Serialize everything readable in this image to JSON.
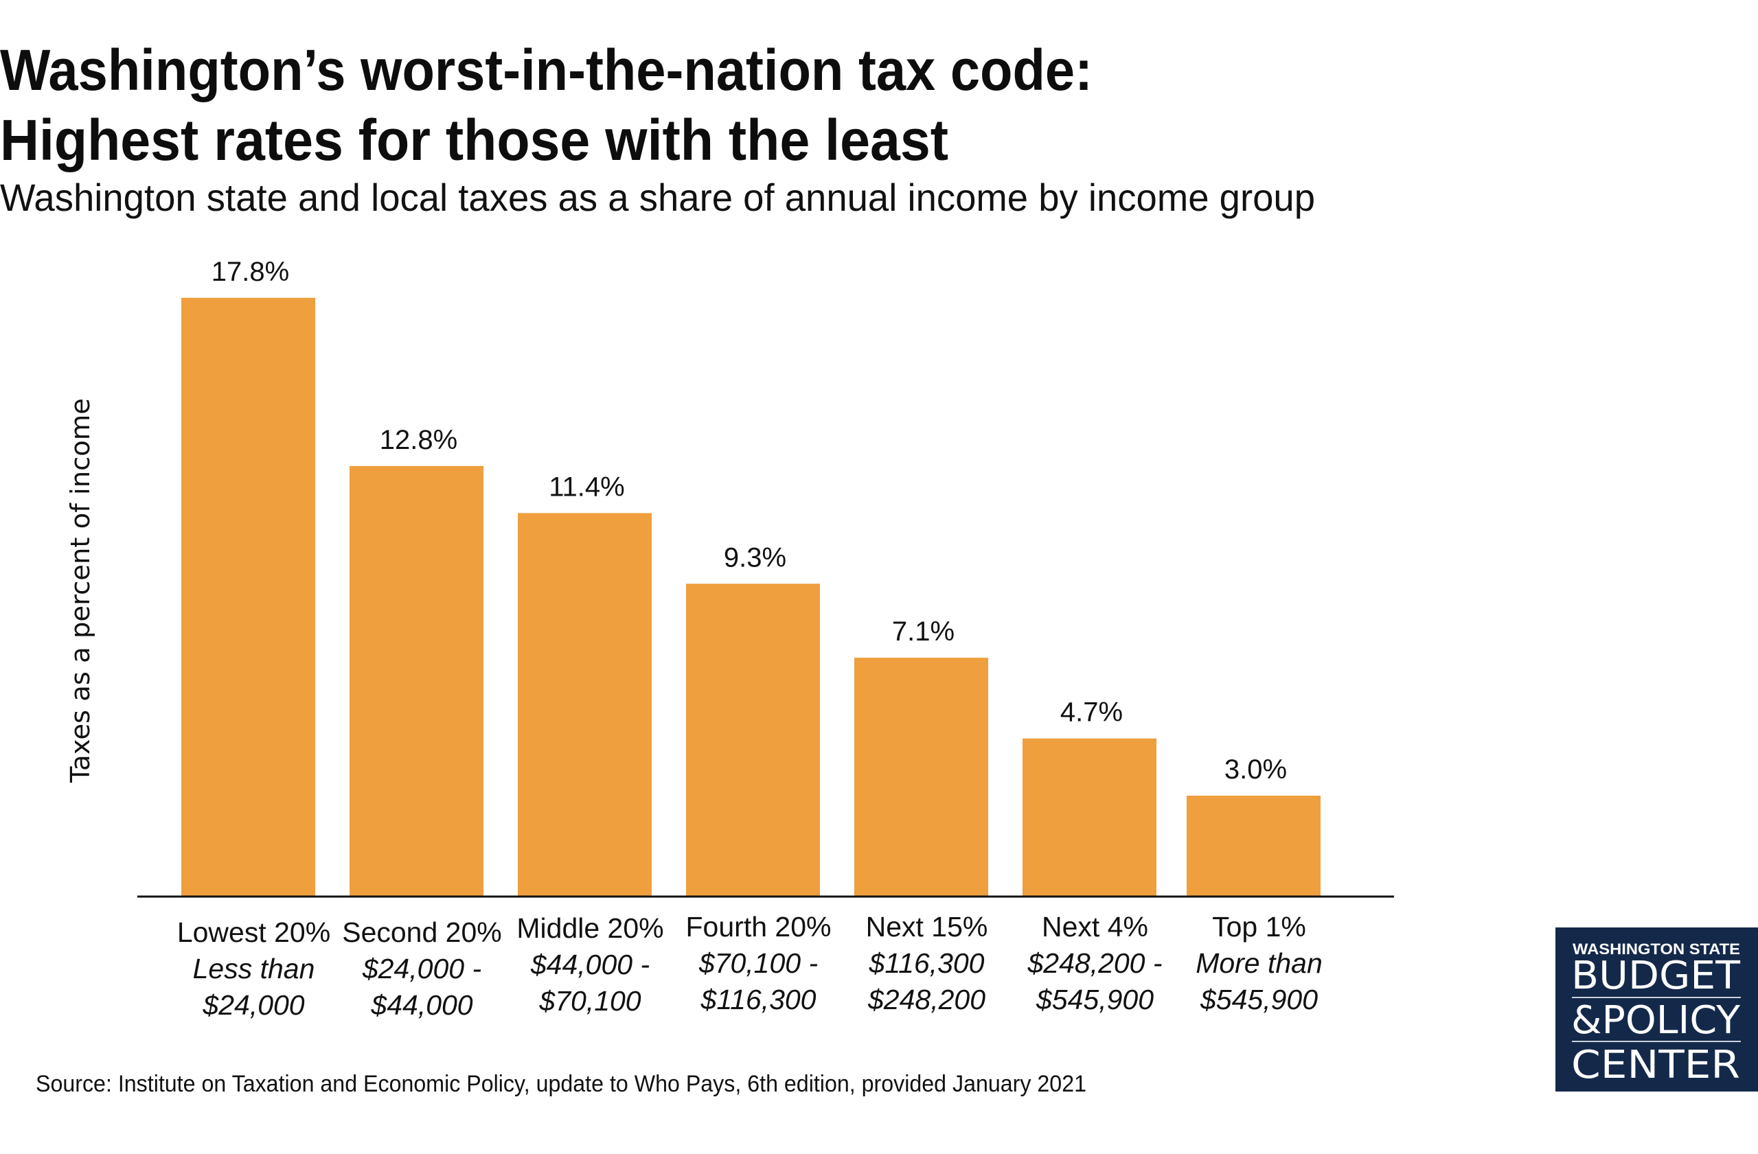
{
  "title_lines": [
    "Washington’s worst-in-the-nation tax code:",
    "Highest rates for those with the least"
  ],
  "subtitle": "Washington state and local taxes as a share of annual income by income group",
  "source": "Source: Institute on Taxation and Economic Policy, update to Who Pays, 6th edition, provided January 2021",
  "logo": {
    "line1": "WASHINGTON STATE",
    "line2": "BUDGET",
    "line3": "&POLICY",
    "line4": "CENTER"
  },
  "colors": {
    "bar": "#EF9F3D",
    "axis": "#111111",
    "logo_bg": "#14294A",
    "text": "#111111"
  },
  "chart_data": {
    "type": "bar",
    "title": "Washington’s worst-in-the-nation tax code: Highest rates for those with the least",
    "subtitle": "Washington state and local taxes as a share of annual income by income group",
    "xlabel": "",
    "ylabel": "Taxes as a percent of income",
    "ylim": [
      0,
      18
    ],
    "grid": false,
    "legend": "none",
    "categories": [
      {
        "group": "Lowest 20%",
        "range_lines": [
          "Less than",
          "$24,000"
        ]
      },
      {
        "group": "Second 20%",
        "range_lines": [
          "$24,000 -",
          "$44,000"
        ]
      },
      {
        "group": "Middle 20%",
        "range_lines": [
          "$44,000 -",
          "$70,100"
        ]
      },
      {
        "group": "Fourth 20%",
        "range_lines": [
          "$70,100 -",
          "$116,300"
        ]
      },
      {
        "group": "Next 15%",
        "range_lines": [
          "$116,300",
          "$248,200"
        ]
      },
      {
        "group": "Next 4%",
        "range_lines": [
          "$248,200 -",
          "$545,900"
        ]
      },
      {
        "group": "Top 1%",
        "range_lines": [
          "More than",
          "$545,900"
        ]
      }
    ],
    "values": [
      17.8,
      12.8,
      11.4,
      9.3,
      7.1,
      4.7,
      3.0
    ],
    "value_labels": [
      "17.8%",
      "12.8%",
      "11.4%",
      "9.3%",
      "7.1%",
      "4.7%",
      "3.0%"
    ],
    "unit": "%"
  }
}
